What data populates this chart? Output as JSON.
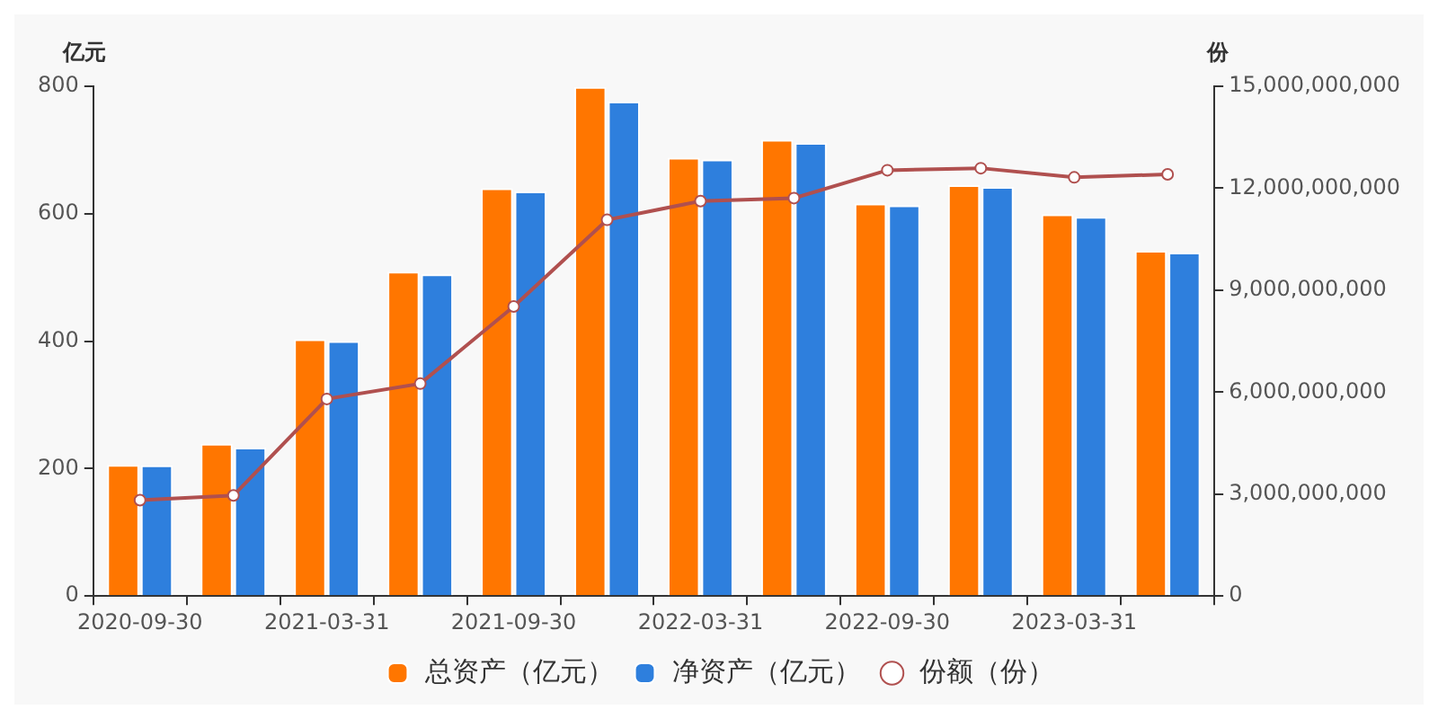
{
  "chart_data": {
    "type": "bar",
    "categories": [
      "2020-09-30",
      null,
      "2021-03-31",
      null,
      "2021-09-30",
      null,
      "2022-03-31",
      null,
      "2022-09-30",
      null,
      "2023-03-31",
      null
    ],
    "series": [
      {
        "name": "总资产（亿元）",
        "color": "#ff7600",
        "values": [
          206,
          239,
          403,
          509,
          640,
          799,
          688,
          716,
          616,
          645,
          599,
          542
        ]
      },
      {
        "name": "净资产（亿元）",
        "color": "#2e7fdd",
        "values": [
          205,
          233,
          400,
          505,
          635,
          776,
          685,
          711,
          613,
          642,
          595,
          539
        ]
      },
      {
        "name": "份额（份）",
        "type": "line",
        "axis": "y2",
        "color": "#b0504f",
        "marker": "circle",
        "values": [
          2820000000,
          2960000000,
          5800000000,
          6250000000,
          8520000000,
          11070000000,
          11620000000,
          11710000000,
          12530000000,
          12590000000,
          12320000000,
          12410000000
        ]
      }
    ],
    "ylabel": "亿元",
    "y2label": "份",
    "ylim": [
      0,
      800
    ],
    "yticks": [
      0,
      200,
      400,
      600,
      800
    ],
    "y2lim": [
      0,
      15000000000
    ],
    "y2ticks": [
      0,
      {
        "value": 3000000000,
        "label": "3,000,000,000"
      },
      {
        "value": 6000000000,
        "label": "6,000,000,000"
      },
      {
        "value": 9000000000,
        "label": "9,000,000,000"
      },
      {
        "value": 12000000000,
        "label": "12,000,000,000"
      },
      {
        "value": 15000000000,
        "label": "15,000,000,000"
      }
    ],
    "grid": false,
    "legend": "bottom"
  }
}
